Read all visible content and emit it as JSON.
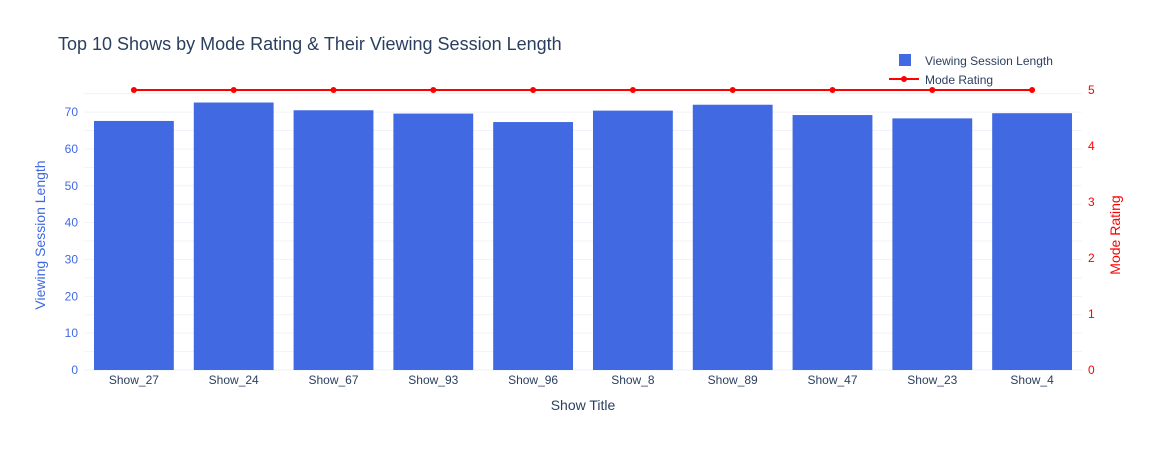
{
  "chart_data": {
    "type": "bar",
    "title": "Top 10 Shows by Mode Rating & Their Viewing Session Length",
    "xlabel": "Show Title",
    "categories": [
      "Show_27",
      "Show_24",
      "Show_67",
      "Show_93",
      "Show_96",
      "Show_8",
      "Show_89",
      "Show_47",
      "Show_23",
      "Show_4"
    ],
    "series": [
      {
        "name": "Viewing Session Length",
        "type": "bar",
        "axis": "y",
        "color": "#4169E1",
        "values": [
          67.6,
          72.6,
          70.5,
          69.6,
          67.3,
          70.4,
          72.0,
          69.2,
          68.3,
          69.7
        ]
      },
      {
        "name": "Mode Rating",
        "type": "line",
        "axis": "y2",
        "color": "#FF0000",
        "values": [
          5,
          5,
          5,
          5,
          5,
          5,
          5,
          5,
          5,
          5
        ]
      }
    ],
    "yaxis": {
      "label": "Viewing Session Length",
      "range": [
        0,
        76.0
      ],
      "ticks": [
        "0",
        "10",
        "20",
        "30",
        "40",
        "50",
        "60",
        "70"
      ],
      "color": "#4169E1"
    },
    "y2axis": {
      "label": "Mode Rating",
      "range": [
        0,
        5.0
      ],
      "ticks": [
        "0",
        "1",
        "2",
        "3",
        "4",
        "5"
      ],
      "color": "#FF0000"
    },
    "legend_position": "top-right",
    "grid": true
  }
}
